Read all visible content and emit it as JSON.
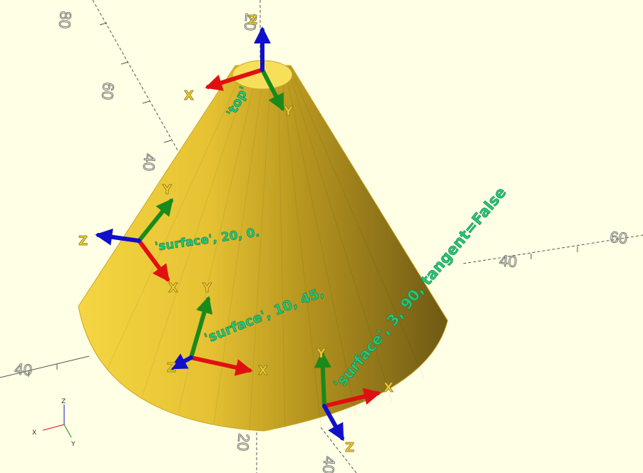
{
  "viewport": {
    "background": "#ffffe5",
    "model": "cone"
  },
  "colors": {
    "cone_light": "#f5d642",
    "cone_mid": "#d9b52a",
    "cone_dark": "#7a6417",
    "axis_x": "#e01010",
    "axis_y": "#1a8a1a",
    "axis_z": "#1010c8",
    "label_text": "#22c97a",
    "axis_letter": "#e8cc30",
    "grid_axis": "#555555"
  },
  "grid": {
    "tick_labels": [
      {
        "text": "80",
        "name": "tick-label-80-top"
      },
      {
        "text": "60",
        "name": "tick-label-60-left"
      },
      {
        "text": "40",
        "name": "tick-label-40-left"
      },
      {
        "text": "20",
        "name": "tick-label-20-top"
      },
      {
        "text": "60",
        "name": "tick-label-60-right"
      },
      {
        "text": "40",
        "name": "tick-label-40-right"
      },
      {
        "text": "40",
        "name": "tick-label-40-bottom-left"
      },
      {
        "text": "20",
        "name": "tick-label-20-bottom"
      },
      {
        "text": "40",
        "name": "tick-label-40-bottom"
      }
    ]
  },
  "annotations": {
    "top": "'top'",
    "surface_20": "'surface', 20, 0.",
    "surface_10": "'surface', 10, 45,",
    "surface_3": "'surface', 3, 90, tangent=False"
  },
  "axis_letters": {
    "x": "X",
    "y": "Y",
    "z": "Z"
  },
  "axes_indicator": {
    "x": "X",
    "y": "Y",
    "z": "Z"
  }
}
